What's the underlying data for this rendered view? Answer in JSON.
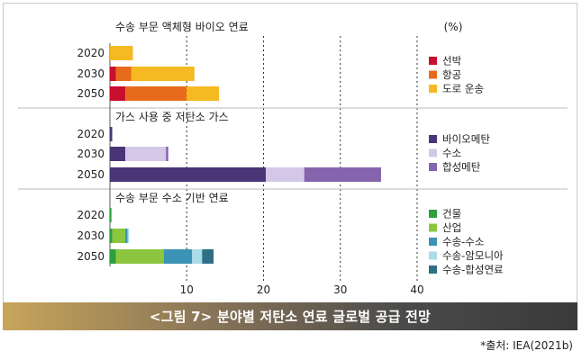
{
  "caption": "<그림 7> 분야별 저탄소 연료 글로벌 공급 전망",
  "source": "*출처: IEA(2021b)",
  "chart_data": {
    "type": "bar",
    "orientation": "horizontal",
    "stacked": true,
    "unit_label": "(%)",
    "x_ticks": [
      "10",
      "20",
      "30",
      "40"
    ],
    "xlim": [
      0,
      40
    ],
    "grid": "dashed vertical at ticks",
    "legend_position": "right",
    "panels": [
      {
        "title": "수송 부문 액체형 바이오 연료",
        "categories": [
          "2020",
          "2030",
          "2050"
        ],
        "series": [
          {
            "name": "선박",
            "color": "#c8102e",
            "values": [
              0,
              0.8,
              2.0
            ]
          },
          {
            "name": "항공",
            "color": "#e86b1c",
            "values": [
              0,
              2.0,
              8.0
            ]
          },
          {
            "name": "도로 운송",
            "color": "#f5b921",
            "values": [
              3.0,
              8.2,
              4.2
            ]
          }
        ]
      },
      {
        "title": "가스 사용 중 저탄소 가스",
        "categories": [
          "2020",
          "2030",
          "2050"
        ],
        "series": [
          {
            "name": "바이오메탄",
            "color": "#4a3577",
            "values": [
              0.3,
              2.0,
              20.3
            ]
          },
          {
            "name": "수소",
            "color": "#d4c8e8",
            "values": [
              0,
              5.3,
              5.0
            ]
          },
          {
            "name": "합성메탄",
            "color": "#8464ad",
            "values": [
              0,
              0.3,
              10.0
            ]
          }
        ]
      },
      {
        "title": "수송 부문 수소 기반 연료",
        "categories": [
          "2020",
          "2030",
          "2050"
        ],
        "series": [
          {
            "name": "건물",
            "color": "#2e9e3e",
            "values": [
              0.2,
              0.3,
              0.8
            ]
          },
          {
            "name": "산업",
            "color": "#8cc63f",
            "values": [
              0,
              1.7,
              6.2
            ]
          },
          {
            "name": "수송-수소",
            "color": "#3b93b5",
            "values": [
              0,
              0.3,
              3.7
            ]
          },
          {
            "name": "수송-암모니아",
            "color": "#a9dbe8",
            "values": [
              0,
              0.2,
              1.3
            ]
          },
          {
            "name": "수송-합성연료",
            "color": "#2e6f87",
            "values": [
              0,
              0,
              1.5
            ]
          }
        ]
      }
    ]
  }
}
